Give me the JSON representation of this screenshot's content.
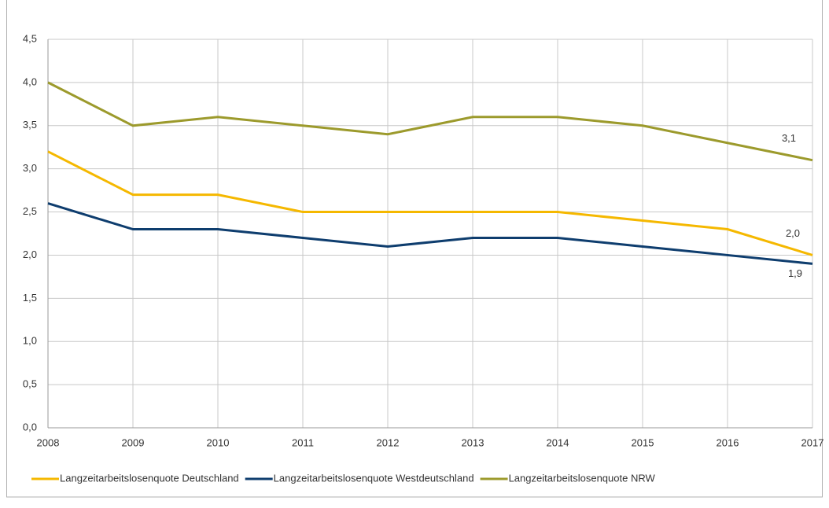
{
  "chart_data": {
    "type": "line",
    "x": [
      2008,
      2009,
      2010,
      2011,
      2012,
      2013,
      2014,
      2015,
      2016,
      2017
    ],
    "xlim": [
      2008,
      2017
    ],
    "xticks": [
      2008,
      2009,
      2010,
      2011,
      2012,
      2013,
      2014,
      2015,
      2016,
      2017
    ],
    "ylim": [
      0,
      4.5
    ],
    "yticks": [
      {
        "value": 0,
        "label": "0,0"
      },
      {
        "value": 0.5,
        "label": "0,5"
      },
      {
        "value": 1,
        "label": "1,0"
      },
      {
        "value": 1.5,
        "label": "1,5"
      },
      {
        "value": 2,
        "label": "2,0"
      },
      {
        "value": 2.5,
        "label": "2,5"
      },
      {
        "value": 3,
        "label": "3,0"
      },
      {
        "value": 3.5,
        "label": "3,5"
      },
      {
        "value": 4,
        "label": "4,0"
      },
      {
        "value": 4.5,
        "label": "4,5"
      }
    ],
    "grid": true,
    "legend": "bottom",
    "series": [
      {
        "name": "Langzeitarbeitslosenquote Deutschland",
        "color": "#f5b800",
        "values": [
          3.2,
          2.7,
          2.7,
          2.5,
          2.5,
          2.5,
          2.5,
          2.4,
          2.3,
          2.0
        ],
        "value_labels": [
          null,
          null,
          null,
          null,
          null,
          null,
          null,
          null,
          null,
          "2,0"
        ]
      },
      {
        "name": "Langzeitarbeitslosenquote Westdeutschland",
        "color": "#0e3d6e",
        "values": [
          2.6,
          2.3,
          2.3,
          2.2,
          2.1,
          2.2,
          2.2,
          2.1,
          2.0,
          1.9
        ],
        "value_labels": [
          null,
          null,
          null,
          null,
          null,
          null,
          null,
          null,
          null,
          "1,9"
        ]
      },
      {
        "name": "Langzeitarbeitslosenquote NRW",
        "color": "#9c9a2c",
        "values": [
          4.0,
          3.5,
          3.6,
          3.5,
          3.4,
          3.6,
          3.6,
          3.5,
          3.3,
          3.1
        ],
        "value_labels": [
          null,
          null,
          null,
          null,
          null,
          null,
          null,
          null,
          null,
          "3,1"
        ]
      }
    ]
  }
}
